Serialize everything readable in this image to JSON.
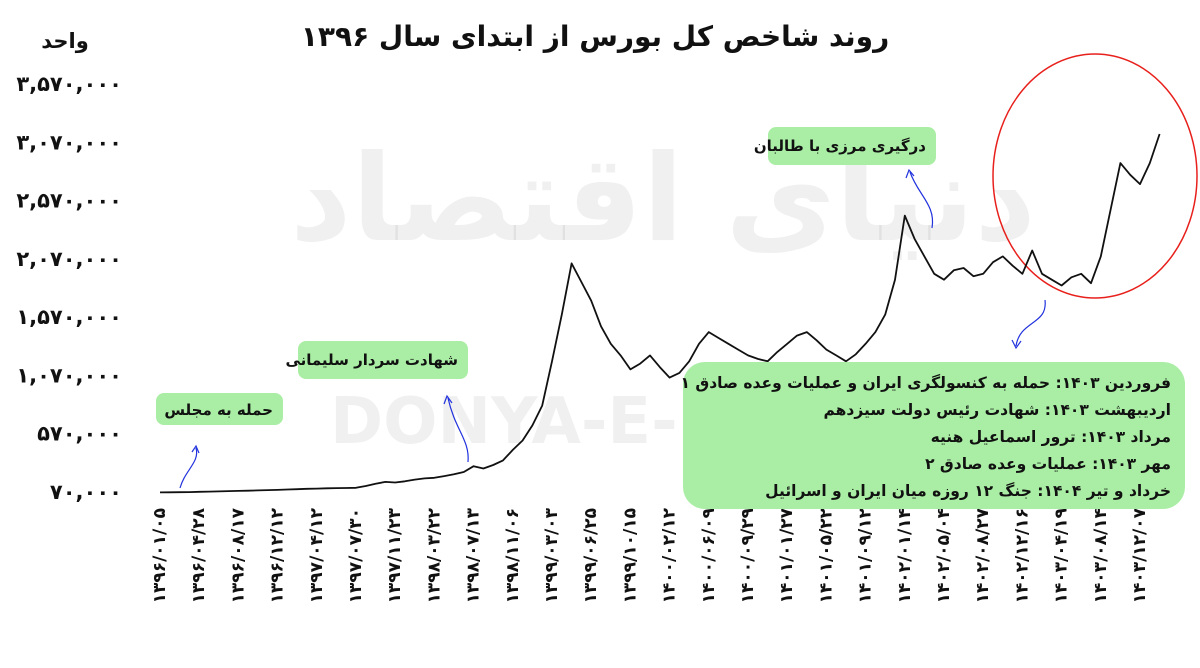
{
  "chart_data": {
    "type": "line",
    "title": "روند شاخص کل بورس از ابتدای سال ۱۳۹۶",
    "y_label": "واحد",
    "watermark_fa": "دنیای اقتصاد",
    "watermark_en": "DONYA-E-EQTESAD",
    "color": "#111111",
    "ylim": [
      70000,
      3570000
    ],
    "yticks": [
      {
        "value": 70000,
        "label": "۷۰,۰۰۰"
      },
      {
        "value": 570000,
        "label": "۵۷۰,۰۰۰"
      },
      {
        "value": 1070000,
        "label": "۱,۰۷۰,۰۰۰"
      },
      {
        "value": 1570000,
        "label": "۱,۵۷۰,۰۰۰"
      },
      {
        "value": 2070000,
        "label": "۲,۰۷۰,۰۰۰"
      },
      {
        "value": 2570000,
        "label": "۲,۵۷۰,۰۰۰"
      },
      {
        "value": 3070000,
        "label": "۳,۰۷۰,۰۰۰"
      },
      {
        "value": 3570000,
        "label": "۳,۵۷۰,۰۰۰"
      }
    ],
    "categories": [
      "۱۳۹۶/۰۱/۰۵",
      null,
      null,
      null,
      "۱۳۹۶/۰۴/۲۸",
      null,
      null,
      null,
      "۱۳۹۶/۰۸/۱۷",
      null,
      null,
      null,
      "۱۳۹۶/۱۲/۱۲",
      null,
      null,
      null,
      "۱۳۹۷/۰۴/۱۲",
      null,
      null,
      null,
      "۱۳۹۷/۰۷/۳۰",
      null,
      null,
      null,
      "۱۳۹۷/۱۱/۲۳",
      null,
      null,
      null,
      "۱۳۹۸/۰۳/۲۲",
      null,
      null,
      null,
      "۱۳۹۸/۰۷/۱۳",
      null,
      null,
      null,
      "۱۳۹۸/۱۱/۰۶",
      null,
      null,
      null,
      "۱۳۹۹/۰۳/۰۳",
      null,
      null,
      null,
      "۱۳۹۹/۰۶/۲۵",
      null,
      null,
      null,
      "۱۳۹۹/۱۰/۱۵",
      null,
      null,
      null,
      "۱۴۰۰/۰۲/۱۲",
      null,
      null,
      null,
      "۱۴۰۰/۰۶/۰۹",
      null,
      null,
      null,
      "۱۴۰۰/۰۹/۲۹",
      null,
      null,
      null,
      "۱۴۰۱/۰۱/۲۷",
      null,
      null,
      null,
      "۱۴۰۱/۰۵/۲۲",
      null,
      null,
      null,
      "۱۴۰۱/۰۹/۱۲",
      null,
      null,
      null,
      "۱۴۰۲/۰۱/۱۴",
      null,
      null,
      null,
      "۱۴۰۲/۰۵/۰۴",
      null,
      null,
      null,
      "۱۴۰۲/۰۸/۲۷",
      null,
      null,
      null,
      "۱۴۰۲/۱۲/۱۶",
      null,
      null,
      null,
      "۱۴۰۳/۰۴/۱۹",
      null,
      null,
      null,
      "۱۴۰۳/۰۸/۱۴",
      null,
      null,
      null,
      "۱۴۰۳/۱۲/۰۷",
      null,
      null
    ],
    "values": [
      75000,
      76000,
      77000,
      78000,
      80000,
      82000,
      84000,
      86000,
      88000,
      90000,
      92000,
      95000,
      97000,
      100000,
      103000,
      106000,
      108000,
      110000,
      112000,
      113000,
      115000,
      130000,
      150000,
      165000,
      160000,
      170000,
      185000,
      195000,
      200000,
      215000,
      230000,
      250000,
      300000,
      280000,
      310000,
      350000,
      440000,
      520000,
      650000,
      820000,
      1200000,
      1600000,
      2040000,
      1880000,
      1720000,
      1500000,
      1350000,
      1250000,
      1130000,
      1180000,
      1250000,
      1150000,
      1060000,
      1100000,
      1200000,
      1350000,
      1450000,
      1400000,
      1350000,
      1300000,
      1250000,
      1220000,
      1200000,
      1280000,
      1350000,
      1420000,
      1450000,
      1380000,
      1300000,
      1250000,
      1200000,
      1260000,
      1350000,
      1450000,
      1600000,
      1900000,
      2450000,
      2250000,
      2100000,
      1950000,
      1900000,
      1980000,
      2000000,
      1930000,
      1950000,
      2050000,
      2100000,
      2020000,
      1950000,
      2150000,
      1950000,
      1900000,
      1850000,
      1920000,
      1950000,
      1870000,
      2100000,
      2500000,
      2900000,
      2800000,
      2720000,
      2900000,
      3150000
    ],
    "annotations": [
      {
        "text": "حمله به مجلس"
      },
      {
        "text": "شهادت سردار سلیمانی"
      },
      {
        "text": "درگیری مرزی با طالبان"
      }
    ],
    "events_box": {
      "lines": [
        "فروردین ۱۴۰۳: حمله به کنسولگری ایران و عملیات وعده صادق ۱",
        "اردیبهشت ۱۴۰۳: شهادت رئیس دولت سیزدهم",
        "مرداد ۱۴۰۳: ترور اسماعیل هنیه",
        "مهر ۱۴۰۳: عملیات وعده صادق ۲",
        "خرداد و تیر ۱۴۰۴: جنگ ۱۲ روزه میان ایران و اسرائیل"
      ]
    }
  }
}
